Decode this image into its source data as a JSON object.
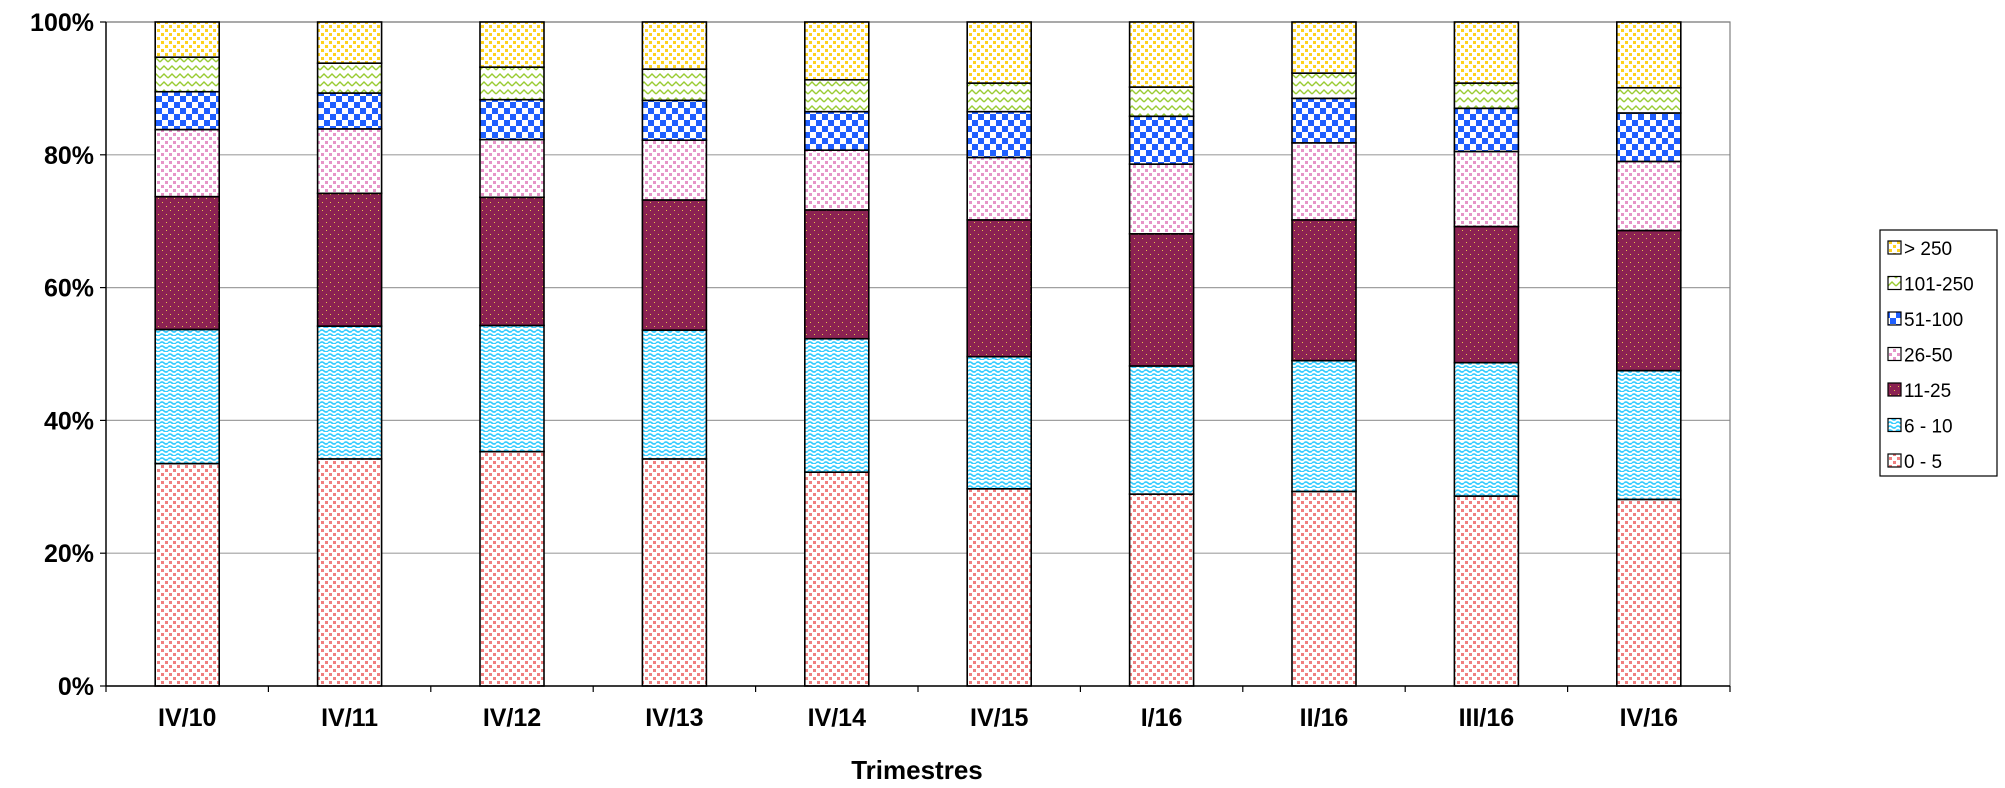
{
  "chart_data": {
    "type": "bar",
    "stacked": true,
    "percent": true,
    "title": "",
    "xlabel": "Trimestres",
    "ylabel": "",
    "ylim": [
      0,
      100
    ],
    "yticks": [
      "0%",
      "20%",
      "40%",
      "60%",
      "80%",
      "100%"
    ],
    "grid": true,
    "legend_position": "right",
    "categories": [
      "IV/10",
      "IV/11",
      "IV/12",
      "IV/13",
      "IV/14",
      "IV/15",
      "I/16",
      "II/16",
      "III/16",
      "IV/16"
    ],
    "series": [
      {
        "name": "0 - 5",
        "color": "#f08080",
        "pattern": "dots",
        "values": [
          33.5,
          34.2,
          35.3,
          34.2,
          32.2,
          29.7,
          28.9,
          29.3,
          28.6,
          28.1
        ]
      },
      {
        "name": "6 - 10",
        "color": "#33ccff",
        "pattern": "wave",
        "values": [
          20.2,
          20.0,
          19.0,
          19.4,
          20.1,
          19.9,
          19.3,
          19.7,
          20.1,
          19.4
        ]
      },
      {
        "name": "11-25",
        "color": "#8b2252",
        "pattern": "sprinkle",
        "values": [
          20.0,
          20.0,
          19.3,
          19.6,
          19.4,
          20.6,
          19.9,
          21.2,
          20.5,
          21.1
        ]
      },
      {
        "name": "26-50",
        "color": "#e695c8",
        "pattern": "dots",
        "values": [
          10.1,
          9.7,
          8.7,
          9.0,
          9.0,
          9.4,
          10.5,
          11.6,
          11.3,
          10.4
        ]
      },
      {
        "name": "51-100",
        "color": "#1f5fff",
        "pattern": "checker",
        "values": [
          5.7,
          5.4,
          6.0,
          6.0,
          5.8,
          6.9,
          7.2,
          6.7,
          6.5,
          7.3
        ]
      },
      {
        "name": "101-250",
        "color": "#99cc33",
        "pattern": "zigzag",
        "values": [
          5.2,
          4.5,
          4.9,
          4.7,
          4.8,
          4.3,
          4.4,
          3.8,
          3.8,
          3.8
        ]
      },
      {
        "name": "> 250",
        "color": "#ffd21f",
        "pattern": "dots",
        "values": [
          5.3,
          6.2,
          6.8,
          7.1,
          8.7,
          9.2,
          9.8,
          7.7,
          9.2,
          9.9
        ]
      }
    ]
  }
}
